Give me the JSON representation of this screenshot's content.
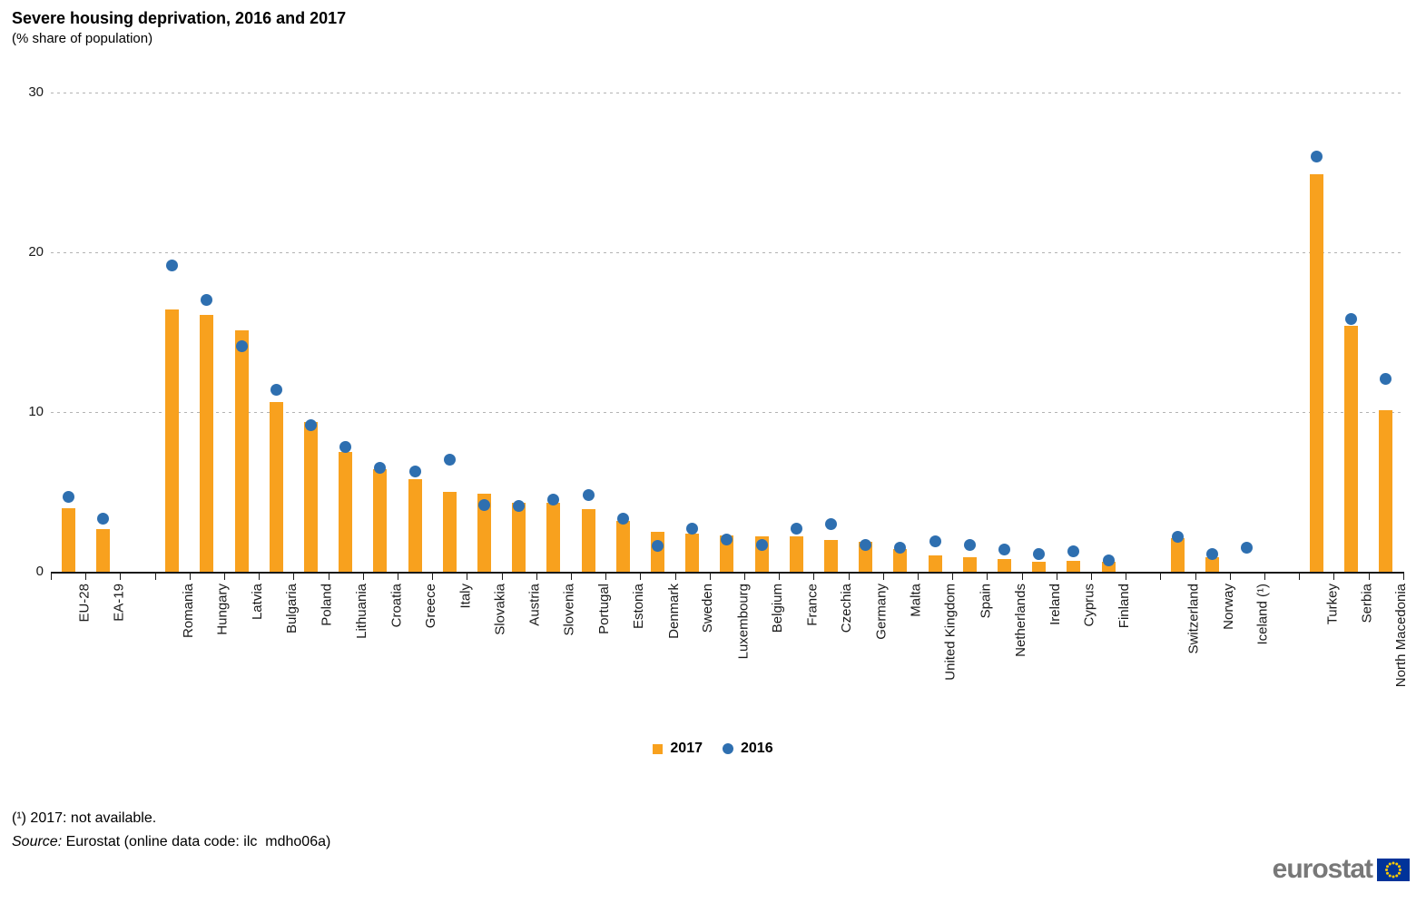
{
  "footnote": "(¹) 2017: not available.",
  "source": {
    "label": "Source:",
    "text": " Eurostat (online data code: ilc  mdho06a)"
  },
  "logo": {
    "text": "eurostat"
  },
  "chart_data": {
    "type": "bar",
    "title": "Severe housing deprivation, 2016 and 2017",
    "subtitle": "(% share of population)",
    "ylim": [
      0,
      30
    ],
    "yticks": [
      0,
      10,
      20,
      30
    ],
    "grid": "horizontal-dashed",
    "legend_position": "bottom-center",
    "series": [
      {
        "name": "2017",
        "type": "bar",
        "color": "#F8A11E"
      },
      {
        "name": "2016",
        "type": "point",
        "color": "#2E6FB0"
      }
    ],
    "categories": [
      {
        "label": "EU-28",
        "v2017": 4.0,
        "v2016": 4.7
      },
      {
        "label": "EA-19",
        "v2017": 2.7,
        "v2016": 3.3
      },
      {
        "spacer": true
      },
      {
        "label": "Romania",
        "v2017": 16.4,
        "v2016": 19.2
      },
      {
        "label": "Hungary",
        "v2017": 16.1,
        "v2016": 17.0
      },
      {
        "label": "Latvia",
        "v2017": 15.1,
        "v2016": 14.1
      },
      {
        "label": "Bulgaria",
        "v2017": 10.6,
        "v2016": 11.4
      },
      {
        "label": "Poland",
        "v2017": 9.4,
        "v2016": 9.2
      },
      {
        "label": "Lithuania",
        "v2017": 7.5,
        "v2016": 7.8
      },
      {
        "label": "Croatia",
        "v2017": 6.4,
        "v2016": 6.5
      },
      {
        "label": "Greece",
        "v2017": 5.8,
        "v2016": 6.3
      },
      {
        "label": "Italy",
        "v2017": 5.0,
        "v2016": 7.0
      },
      {
        "label": "Slovakia",
        "v2017": 4.9,
        "v2016": 4.2
      },
      {
        "label": "Austria",
        "v2017": 4.3,
        "v2016": 4.1
      },
      {
        "label": "Slovenia",
        "v2017": 4.3,
        "v2016": 4.5
      },
      {
        "label": "Portugal",
        "v2017": 3.9,
        "v2016": 4.8
      },
      {
        "label": "Estonia",
        "v2017": 3.2,
        "v2016": 3.3
      },
      {
        "label": "Denmark",
        "v2017": 2.5,
        "v2016": 1.6
      },
      {
        "label": "Sweden",
        "v2017": 2.4,
        "v2016": 2.7
      },
      {
        "label": "Luxembourg",
        "v2017": 2.3,
        "v2016": 2.0
      },
      {
        "label": "Belgium",
        "v2017": 2.2,
        "v2016": 1.7
      },
      {
        "label": "France",
        "v2017": 2.2,
        "v2016": 2.7
      },
      {
        "label": "Czechia",
        "v2017": 2.0,
        "v2016": 3.0
      },
      {
        "label": "Germany",
        "v2017": 1.9,
        "v2016": 1.7
      },
      {
        "label": "Malta",
        "v2017": 1.4,
        "v2016": 1.5
      },
      {
        "label": "United Kingdom",
        "v2017": 1.0,
        "v2016": 1.9
      },
      {
        "label": "Spain",
        "v2017": 0.9,
        "v2016": 1.7
      },
      {
        "label": "Netherlands",
        "v2017": 0.8,
        "v2016": 1.4
      },
      {
        "label": "Ireland",
        "v2017": 0.6,
        "v2016": 1.1
      },
      {
        "label": "Cyprus",
        "v2017": 0.7,
        "v2016": 1.3
      },
      {
        "label": "Finland",
        "v2017": 0.6,
        "v2016": 0.7
      },
      {
        "spacer": true
      },
      {
        "label": "Switzerland",
        "v2017": 2.1,
        "v2016": 2.2
      },
      {
        "label": "Norway",
        "v2017": 0.9,
        "v2016": 1.1
      },
      {
        "label": "Iceland (¹)",
        "v2017": null,
        "v2016": 1.5
      },
      {
        "spacer": true
      },
      {
        "label": "Turkey",
        "v2017": 24.9,
        "v2016": 26.0
      },
      {
        "label": "Serbia",
        "v2017": 15.4,
        "v2016": 15.8
      },
      {
        "label": "North Macedonia",
        "v2017": 10.1,
        "v2016": 12.1
      }
    ]
  }
}
